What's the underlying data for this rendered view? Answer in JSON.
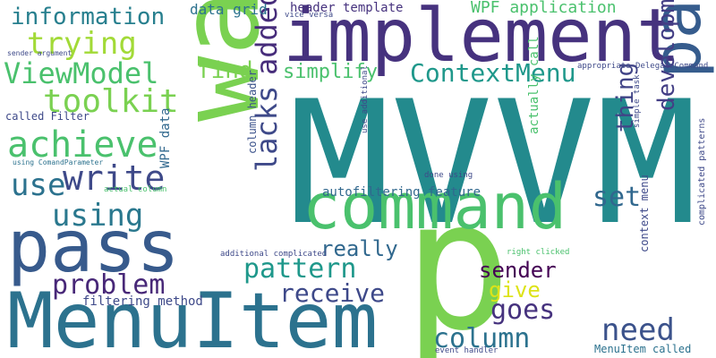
{
  "words": [
    {
      "text": "MVVM",
      "color": "#238a8d"
    },
    {
      "text": "p",
      "color": "#7ad151"
    },
    {
      "text": "implement",
      "color": "#46327e"
    },
    {
      "text": "want",
      "color": "#7ad151"
    },
    {
      "text": "pass",
      "color": "#375a8c"
    },
    {
      "text": "MenuItem",
      "color": "#2c728e"
    },
    {
      "text": "command",
      "color": "#4ac16d"
    },
    {
      "text": "parent",
      "color": "#365c8d"
    },
    {
      "text": "information",
      "color": "#277f8e"
    },
    {
      "text": "trying",
      "color": "#a2da37"
    },
    {
      "text": "ViewModel",
      "color": "#4ac16d"
    },
    {
      "text": "toolkit",
      "color": "#7ad151"
    },
    {
      "text": "achieve",
      "color": "#4ac16d"
    },
    {
      "text": "write",
      "color": "#3e4989"
    },
    {
      "text": "use",
      "color": "#2c728e"
    },
    {
      "text": "using",
      "color": "#2a788e"
    },
    {
      "text": "problem",
      "color": "#482878"
    },
    {
      "text": "pattern",
      "color": "#1f988b"
    },
    {
      "text": "receive",
      "color": "#3e4989"
    },
    {
      "text": "ContextMenu",
      "color": "#1f988b"
    },
    {
      "text": "lacks",
      "color": "#3e4989"
    },
    {
      "text": "added",
      "color": "#472d7b"
    },
    {
      "text": "find",
      "color": "#7ad151"
    },
    {
      "text": "simplify",
      "color": "#4ac16d"
    },
    {
      "text": "thing",
      "color": "#414487"
    },
    {
      "text": "set",
      "color": "#31688e"
    },
    {
      "text": "development",
      "color": "#433e85"
    },
    {
      "text": "really",
      "color": "#31688e"
    },
    {
      "text": "sender",
      "color": "#440154"
    },
    {
      "text": "give",
      "color": "#dde318"
    },
    {
      "text": "goes",
      "color": "#46327e"
    },
    {
      "text": "column",
      "color": "#2c728e"
    },
    {
      "text": "need",
      "color": "#3b528b"
    },
    {
      "text": "data grid",
      "color": "#2c728e"
    },
    {
      "text": "header template",
      "color": "#46327e"
    },
    {
      "text": "WPF application",
      "color": "#4ac16d"
    },
    {
      "text": "vice versa",
      "color": "#3e4989"
    },
    {
      "text": "sender argument",
      "color": "#3e4989"
    },
    {
      "text": "called Filter",
      "color": "#3e4989"
    },
    {
      "text": "using ComandParameter",
      "color": "#2c728e"
    },
    {
      "text": "actual column",
      "color": "#4ac16d"
    },
    {
      "text": "WPF data",
      "color": "#31688e"
    },
    {
      "text": "column header",
      "color": "#3b528b"
    },
    {
      "text": "autofiltering feature",
      "color": "#31688e"
    },
    {
      "text": "use additional",
      "color": "#3e4989"
    },
    {
      "text": "actually call",
      "color": "#4ac16d"
    },
    {
      "text": "done using",
      "color": "#3e4989"
    },
    {
      "text": "context menu",
      "color": "#3e4989"
    },
    {
      "text": "appropriate DelegateCommand",
      "color": "#3e4989"
    },
    {
      "text": "simple task",
      "color": "#3e4989"
    },
    {
      "text": "complicated patterns",
      "color": "#3e4989"
    },
    {
      "text": "additional complicated",
      "color": "#3e4989"
    },
    {
      "text": "filtering method",
      "color": "#3e4989"
    },
    {
      "text": "right clicked",
      "color": "#4ac16d"
    },
    {
      "text": "MenuItem called",
      "color": "#2c728e"
    },
    {
      "text": "event handler",
      "color": "#3e4989"
    }
  ]
}
